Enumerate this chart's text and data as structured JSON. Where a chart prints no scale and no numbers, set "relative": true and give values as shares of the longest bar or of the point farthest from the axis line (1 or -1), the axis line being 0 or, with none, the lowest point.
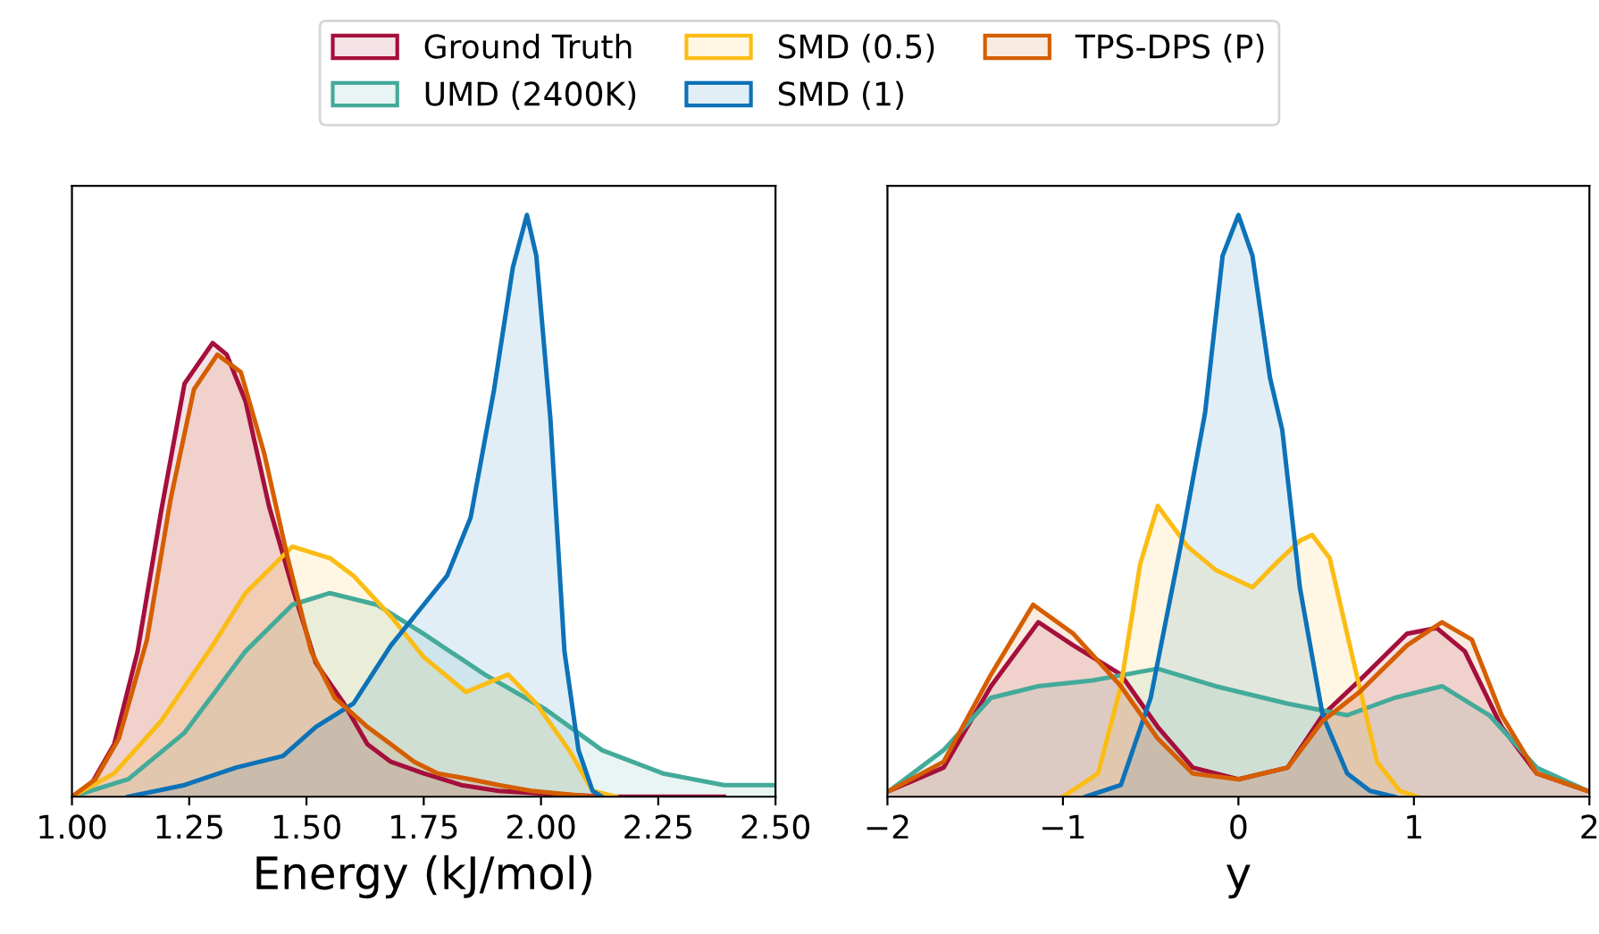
{
  "chart_data": [
    {
      "type": "area",
      "relative": true,
      "xlabel": "Energy (kJ/mol)",
      "xlim": [
        1.0,
        2.5
      ],
      "xticks": [
        {
          "value": 1.0,
          "label": "1.00"
        },
        {
          "value": 1.25,
          "label": "1.25"
        },
        {
          "value": 1.5,
          "label": "1.50"
        },
        {
          "value": 1.75,
          "label": "1.75"
        },
        {
          "value": 2.0,
          "label": "2.00"
        },
        {
          "value": 2.25,
          "label": "2.25"
        },
        {
          "value": 2.5,
          "label": "2.50"
        }
      ],
      "tick_labels": "x",
      "legend": "top",
      "grid": false,
      "series": [
        {
          "name": "Ground Truth",
          "color": "#a50f3c",
          "x": [
            1.0,
            1.04,
            1.09,
            1.14,
            1.19,
            1.24,
            1.3,
            1.33,
            1.37,
            1.42,
            1.47,
            1.52,
            1.58,
            1.63,
            1.68,
            1.75,
            1.83,
            1.91,
            2.01,
            2.14,
            2.39
          ],
          "values": [
            0,
            0.02,
            0.09,
            0.25,
            0.49,
            0.71,
            0.78,
            0.76,
            0.68,
            0.5,
            0.36,
            0.23,
            0.16,
            0.09,
            0.06,
            0.04,
            0.02,
            0.01,
            0.005,
            0,
            0
          ]
        },
        {
          "name": "UMD (2400K)",
          "color": "#44aa99",
          "x": [
            1.0,
            1.12,
            1.24,
            1.37,
            1.47,
            1.55,
            1.65,
            1.75,
            1.88,
            2.01,
            2.13,
            2.26,
            2.39,
            2.5
          ],
          "values": [
            0,
            0.03,
            0.11,
            0.25,
            0.33,
            0.35,
            0.33,
            0.28,
            0.21,
            0.15,
            0.08,
            0.04,
            0.02,
            0.02
          ]
        },
        {
          "name": "SMD (0.5)",
          "color": "#fbbc15",
          "x": [
            1.0,
            1.09,
            1.19,
            1.3,
            1.37,
            1.47,
            1.55,
            1.6,
            1.68,
            1.75,
            1.84,
            1.93,
            1.99,
            2.06,
            2.11,
            2.16
          ],
          "values": [
            0,
            0.04,
            0.13,
            0.26,
            0.35,
            0.43,
            0.41,
            0.38,
            0.31,
            0.24,
            0.18,
            0.21,
            0.16,
            0.08,
            0.01,
            0
          ]
        },
        {
          "name": "SMD (1)",
          "color": "#0d72b8",
          "x": [
            1.12,
            1.24,
            1.35,
            1.45,
            1.52,
            1.6,
            1.68,
            1.75,
            1.8,
            1.85,
            1.9,
            1.94,
            1.97,
            1.99,
            2.02,
            2.05,
            2.08,
            2.11,
            2.13
          ],
          "values": [
            0,
            0.02,
            0.05,
            0.07,
            0.12,
            0.16,
            0.26,
            0.33,
            0.38,
            0.48,
            0.7,
            0.91,
            1.0,
            0.93,
            0.65,
            0.25,
            0.08,
            0.01,
            0
          ]
        },
        {
          "name": "TPS-DPS (P)",
          "color": "#d55e00",
          "x": [
            1.0,
            1.05,
            1.1,
            1.16,
            1.21,
            1.26,
            1.31,
            1.36,
            1.41,
            1.46,
            1.51,
            1.56,
            1.63,
            1.68,
            1.73,
            1.78,
            1.85,
            1.91,
            1.98,
            2.11
          ],
          "values": [
            0,
            0.03,
            0.1,
            0.27,
            0.51,
            0.7,
            0.76,
            0.73,
            0.59,
            0.41,
            0.25,
            0.17,
            0.12,
            0.09,
            0.06,
            0.04,
            0.03,
            0.02,
            0.01,
            0
          ]
        }
      ]
    },
    {
      "type": "area",
      "relative": true,
      "xlabel": "y",
      "xlim": [
        -2,
        2
      ],
      "xticks": [
        {
          "value": -2,
          "label": "−2"
        },
        {
          "value": -1,
          "label": "−1"
        },
        0,
        1,
        2
      ],
      "tick_labels": "x",
      "grid": false,
      "series": [
        {
          "color": "#a50f3c",
          "x": [
            -1.99,
            -1.68,
            -1.41,
            -1.14,
            -0.94,
            -0.67,
            -0.46,
            -0.26,
            0,
            0.28,
            0.48,
            0.69,
            0.96,
            1.13,
            1.29,
            1.5,
            1.7,
            1.99
          ],
          "values": [
            0.01,
            0.05,
            0.19,
            0.3,
            0.26,
            0.21,
            0.12,
            0.05,
            0.03,
            0.05,
            0.14,
            0.2,
            0.28,
            0.29,
            0.25,
            0.12,
            0.04,
            0.01
          ]
        },
        {
          "color": "#44aa99",
          "x": [
            -1.99,
            -1.68,
            -1.41,
            -1.14,
            -0.83,
            -0.46,
            -0.13,
            0.28,
            0.62,
            0.89,
            1.16,
            1.43,
            1.7,
            1.99
          ],
          "values": [
            0.01,
            0.08,
            0.17,
            0.19,
            0.2,
            0.22,
            0.19,
            0.16,
            0.14,
            0.17,
            0.19,
            0.14,
            0.05,
            0.01
          ]
        },
        {
          "color": "#fbbc15",
          "x": [
            -1.0,
            -0.8,
            -0.67,
            -0.56,
            -0.46,
            -0.29,
            -0.13,
            0.08,
            0.21,
            0.35,
            0.42,
            0.52,
            0.65,
            0.79,
            0.92,
            1.02
          ],
          "values": [
            0,
            0.04,
            0.19,
            0.4,
            0.5,
            0.43,
            0.39,
            0.36,
            0.4,
            0.44,
            0.45,
            0.41,
            0.24,
            0.06,
            0.01,
            0
          ]
        },
        {
          "color": "#0d72b8",
          "x": [
            -0.87,
            -0.67,
            -0.5,
            -0.33,
            -0.19,
            -0.09,
            0,
            0.08,
            0.18,
            0.25,
            0.35,
            0.48,
            0.62,
            0.75,
            0.89
          ],
          "values": [
            0,
            0.02,
            0.17,
            0.43,
            0.66,
            0.93,
            1.0,
            0.93,
            0.72,
            0.63,
            0.36,
            0.14,
            0.04,
            0.01,
            0
          ]
        },
        {
          "color": "#d55e00",
          "x": [
            -1.99,
            -1.68,
            -1.41,
            -1.17,
            -0.94,
            -0.67,
            -0.46,
            -0.26,
            0,
            0.28,
            0.48,
            0.69,
            0.96,
            1.16,
            1.33,
            1.5,
            1.7,
            1.99
          ],
          "values": [
            0.01,
            0.06,
            0.21,
            0.33,
            0.28,
            0.19,
            0.1,
            0.04,
            0.03,
            0.05,
            0.13,
            0.18,
            0.26,
            0.3,
            0.27,
            0.14,
            0.04,
            0.01
          ]
        }
      ]
    }
  ]
}
